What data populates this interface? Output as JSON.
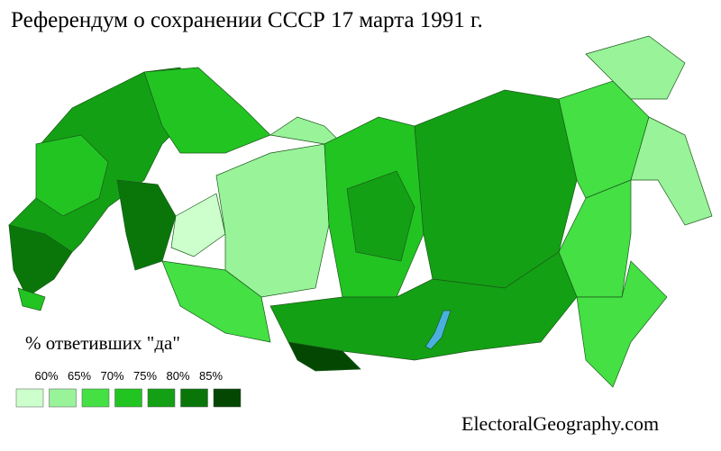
{
  "title": "Референдум о сохранении СССР 17 марта 1991 г.",
  "legend": {
    "title": "% ответивших \"да\"",
    "labels": [
      "60%",
      "65%",
      "70%",
      "75%",
      "80%",
      "85%"
    ],
    "colors": [
      "#ccffcc",
      "#99f399",
      "#44e044",
      "#22c422",
      "#14a014",
      "#0a760a",
      "#034703"
    ]
  },
  "credit": "ElectoralGeography.com"
}
